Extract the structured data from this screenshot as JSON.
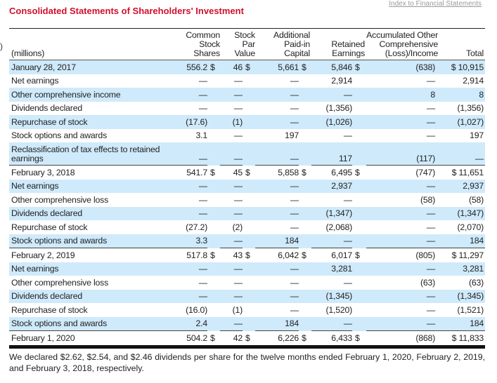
{
  "index_link": "Index to Financial Statements",
  "title": "Consolidated Statements of Shareholders' Investment",
  "cursor_glyph": ")",
  "headers": {
    "label": "(millions)",
    "shares": [
      "Common",
      "Stock",
      "Shares"
    ],
    "par": [
      "Stock",
      "Par",
      "Value"
    ],
    "apic": [
      "Additional",
      "Paid-in",
      "Capital"
    ],
    "re": [
      "Retained",
      "Earnings"
    ],
    "aoci": [
      "Accumulated Other",
      "Comprehensive",
      "(Loss)/Income"
    ],
    "total": "Total"
  },
  "dollar": "$",
  "rows": [
    {
      "label": "January 28, 2017",
      "shares": "556.2",
      "par": "46",
      "apic": "5,661",
      "re": "5,846",
      "aoci": "(638)",
      "total": "$ 10,915",
      "balance": true
    },
    {
      "label": "Net earnings",
      "shares": "—",
      "par": "—",
      "apic": "—",
      "re": "2,914",
      "aoci": "—",
      "total": "2,914"
    },
    {
      "label": "Other comprehensive income",
      "shares": "—",
      "par": "—",
      "apic": "—",
      "re": "—",
      "aoci": "8",
      "total": "8"
    },
    {
      "label": "Dividends declared",
      "shares": "—",
      "par": "—",
      "apic": "—",
      "re": "(1,356)",
      "aoci": "—",
      "total": "(1,356)"
    },
    {
      "label": "Repurchase of stock",
      "shares": "(17.6)",
      "par": "(1)",
      "apic": "—",
      "re": "(1,026)",
      "aoci": "—",
      "total": "(1,027)"
    },
    {
      "label": "Stock options and awards",
      "shares": "3.1",
      "par": "—",
      "apic": "197",
      "re": "—",
      "aoci": "—",
      "total": "197"
    },
    {
      "label": "Reclassification of tax effects to retained earnings",
      "shares": "—",
      "par": "—",
      "apic": "—",
      "re": "117",
      "aoci": "(117)",
      "total": "—",
      "tall": true
    },
    {
      "label": "February 3, 2018",
      "shares": "541.7",
      "par": "45",
      "apic": "5,858",
      "re": "6,495",
      "aoci": "(747)",
      "total": "$ 11,651",
      "balance": true
    },
    {
      "label": "Net earnings",
      "shares": "—",
      "par": "—",
      "apic": "—",
      "re": "2,937",
      "aoci": "—",
      "total": "2,937"
    },
    {
      "label": "Other comprehensive loss",
      "shares": "—",
      "par": "—",
      "apic": "—",
      "re": "—",
      "aoci": "(58)",
      "total": "(58)"
    },
    {
      "label": "Dividends declared",
      "shares": "—",
      "par": "—",
      "apic": "—",
      "re": "(1,347)",
      "aoci": "—",
      "total": "(1,347)"
    },
    {
      "label": "Repurchase of stock",
      "shares": "(27.2)",
      "par": "(2)",
      "apic": "—",
      "re": "(2,068)",
      "aoci": "—",
      "total": "(2,070)"
    },
    {
      "label": "Stock options and awards",
      "shares": "3.3",
      "par": "—",
      "apic": "184",
      "re": "—",
      "aoci": "—",
      "total": "184"
    },
    {
      "label": "February 2, 2019",
      "shares": "517.8",
      "par": "43",
      "apic": "6,042",
      "re": "6,017",
      "aoci": "(805)",
      "total": "$ 11,297",
      "balance": true
    },
    {
      "label": "Net earnings",
      "shares": "—",
      "par": "—",
      "apic": "—",
      "re": "3,281",
      "aoci": "—",
      "total": "3,281"
    },
    {
      "label": "Other comprehensive loss",
      "shares": "—",
      "par": "—",
      "apic": "—",
      "re": "—",
      "aoci": "(63)",
      "total": "(63)"
    },
    {
      "label": "Dividends declared",
      "shares": "—",
      "par": "—",
      "apic": "—",
      "re": "(1,345)",
      "aoci": "—",
      "total": "(1,345)"
    },
    {
      "label": "Repurchase of stock",
      "shares": "(16.0)",
      "par": "(1)",
      "apic": "—",
      "re": "(1,520)",
      "aoci": "—",
      "total": "(1,521)"
    },
    {
      "label": "Stock options and awards",
      "shares": "2.4",
      "par": "—",
      "apic": "184",
      "re": "—",
      "aoci": "—",
      "total": "184"
    },
    {
      "label": "February 1, 2020",
      "shares": "504.2",
      "par": "42",
      "apic": "6,226",
      "re": "6,433",
      "aoci": "(868)",
      "total": "$ 11,833",
      "balance": true
    }
  ],
  "footer": "We declared $2.62, $2.54, and $2.46 dividends per share for the twelve months ended February 1, 2020, February 2, 2019, and February 3, 2018, respectively."
}
